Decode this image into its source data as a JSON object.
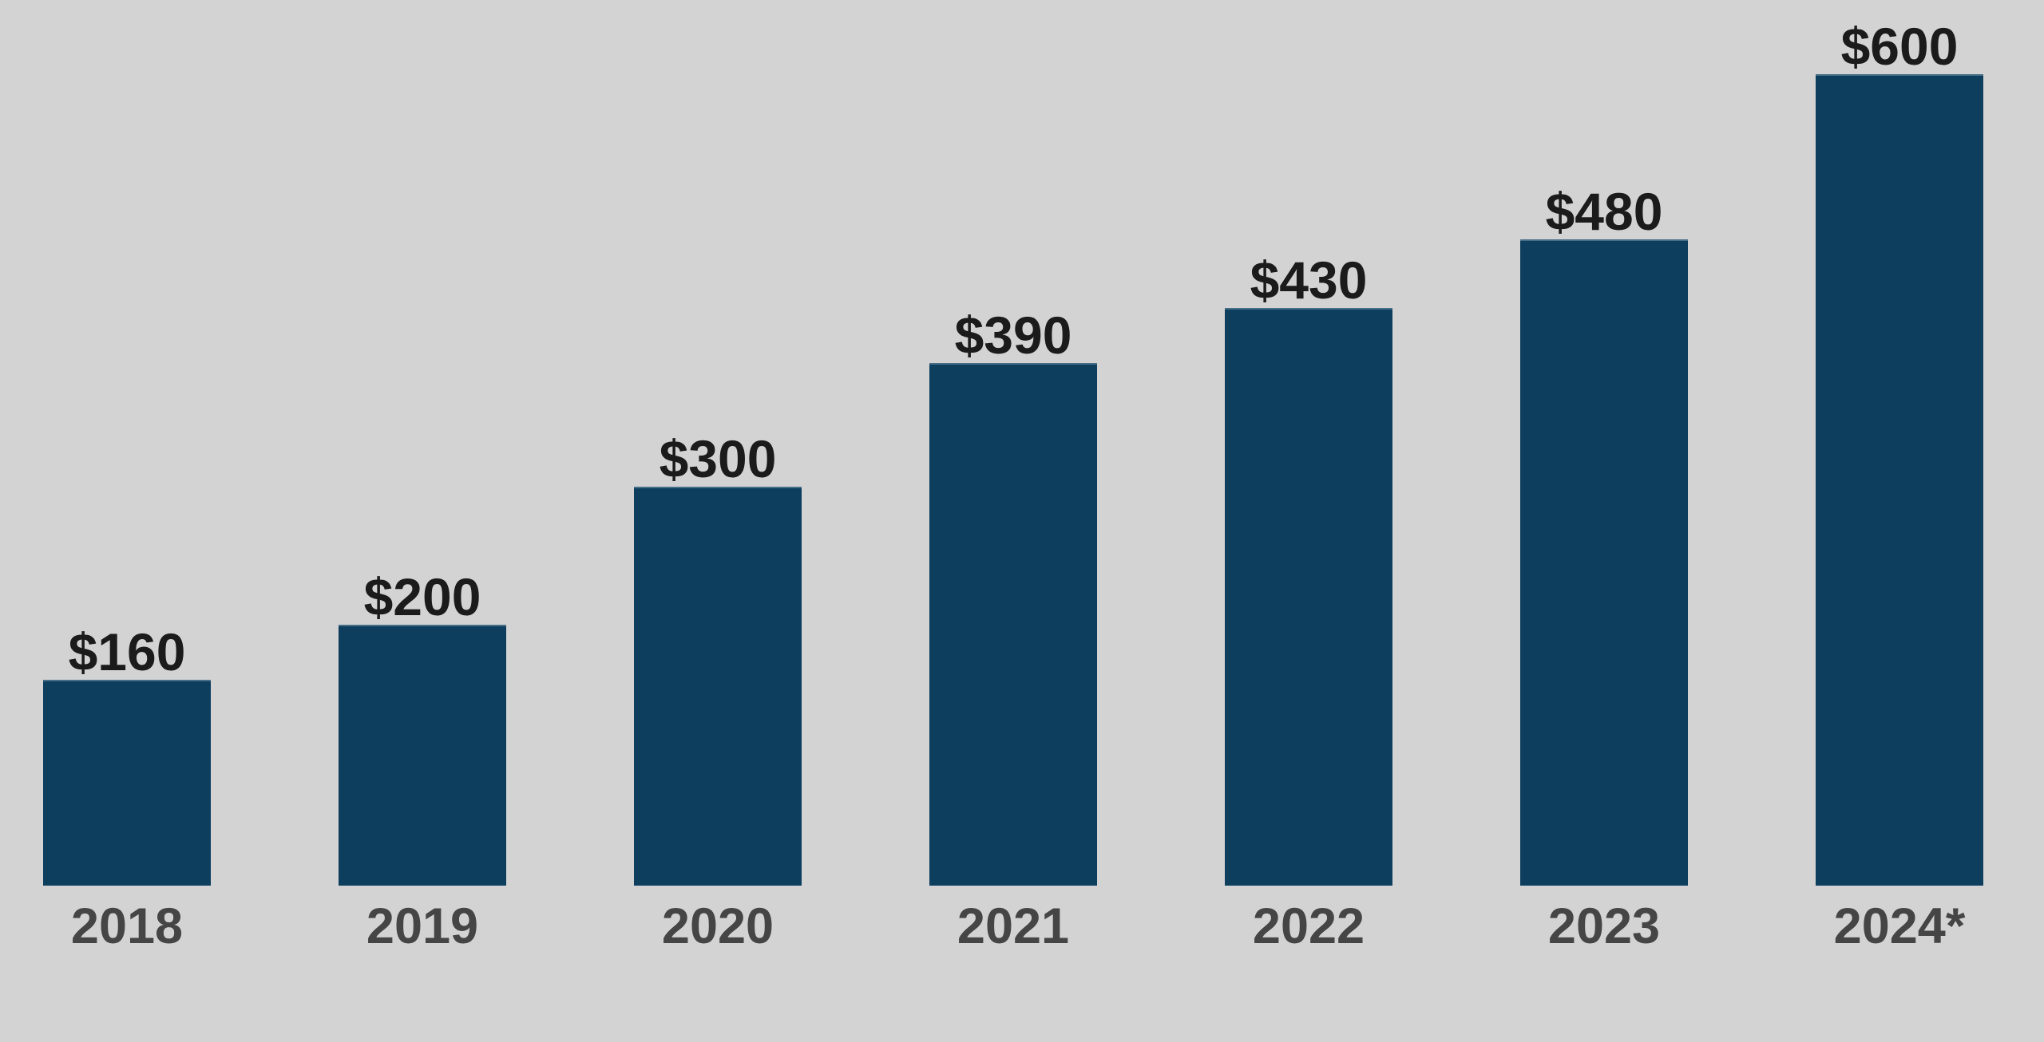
{
  "chart_data": {
    "type": "bar",
    "categories": [
      "2018",
      "2019",
      "2020",
      "2021",
      "2022",
      "2023",
      "2024*"
    ],
    "values": [
      160,
      200,
      300,
      390,
      430,
      480,
      600
    ],
    "value_labels": [
      "$160",
      "$200",
      "$300",
      "$390",
      "$430",
      "$480",
      "$600"
    ],
    "title": "",
    "xlabel": "",
    "ylabel": "",
    "ylim": [
      0,
      650
    ],
    "grid": false,
    "axes_visible": false,
    "legend": null,
    "legend_position": "none",
    "bar_color": "#0d3e5e",
    "background_color": "#d3d3d3",
    "value_label_color": "#1b1b1b",
    "category_label_color": "#454545"
  }
}
